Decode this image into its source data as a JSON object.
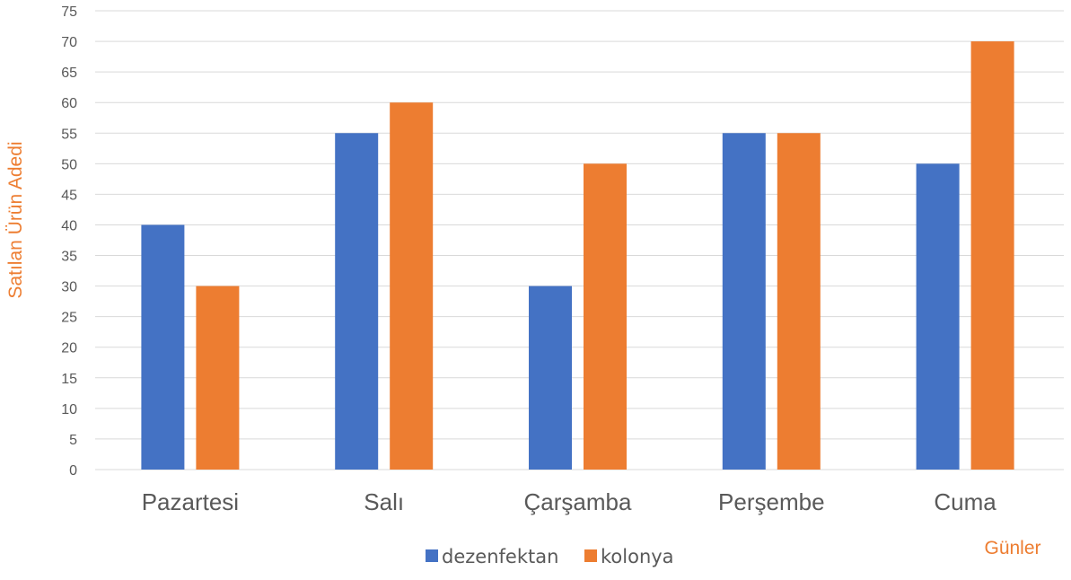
{
  "chart_data": {
    "type": "bar",
    "categories": [
      "Pazartesi",
      "Salı",
      "Çarşamba",
      "Perşembe",
      "Cuma"
    ],
    "series": [
      {
        "name": "dezenfektan",
        "values": [
          40,
          55,
          30,
          55,
          50
        ],
        "color": "#4472C4"
      },
      {
        "name": "kolonya",
        "values": [
          30,
          60,
          50,
          55,
          70
        ],
        "color": "#ED7D31"
      }
    ],
    "xlabel": "Günler",
    "ylabel": "Satılan Ürün Adedi",
    "axis_title_color": "#ED7D31",
    "ylim": [
      0,
      75
    ],
    "ytick_step": 5,
    "grid": true,
    "legend_position": "bottom"
  }
}
